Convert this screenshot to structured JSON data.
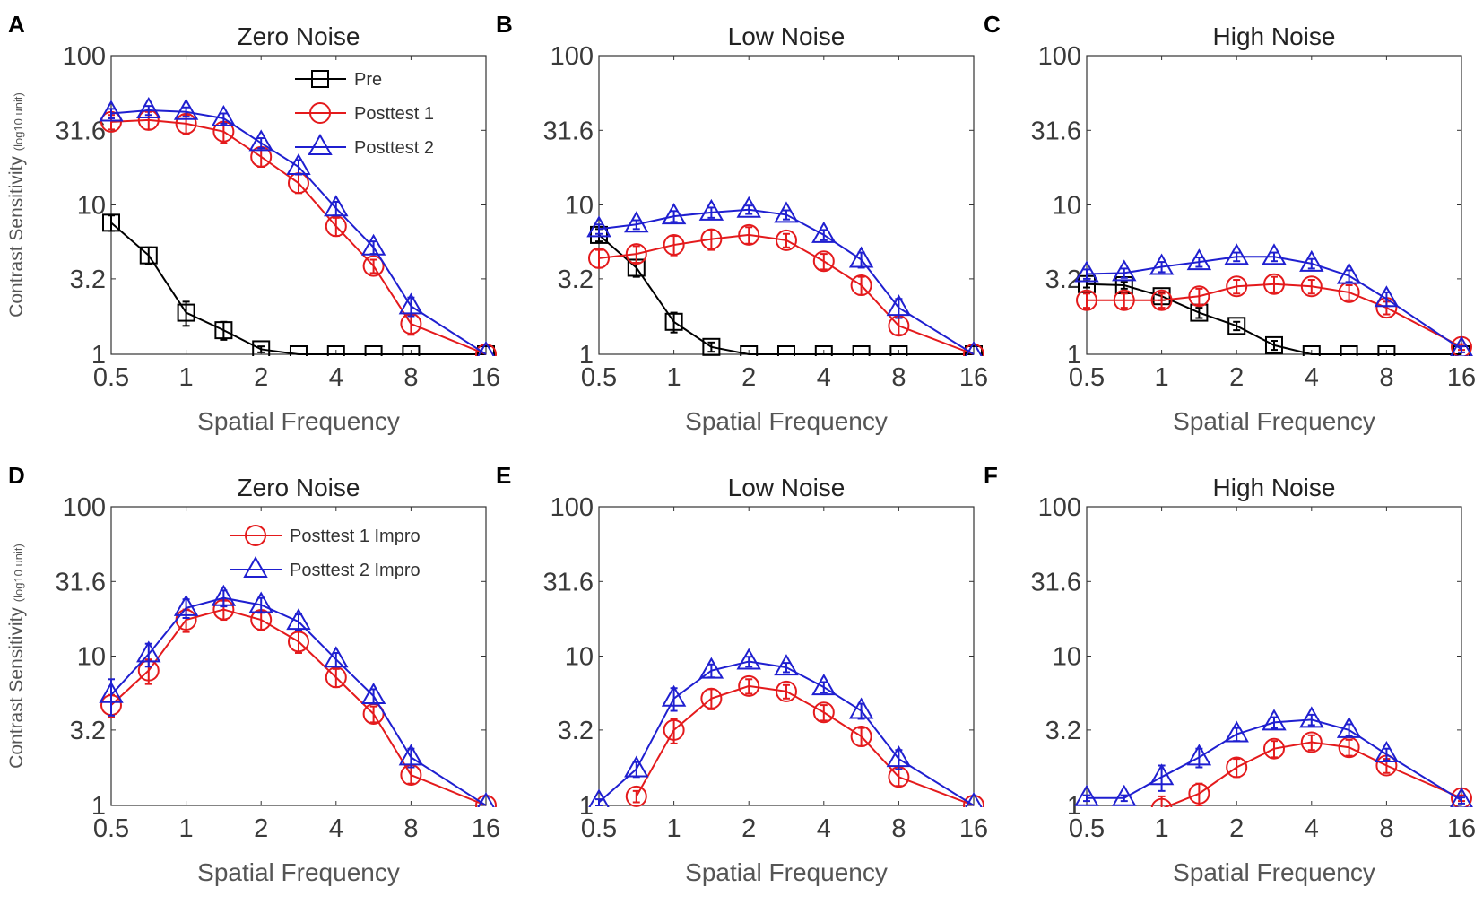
{
  "figure_title": "",
  "chart_data": [
    {
      "panel": "A",
      "type": "line",
      "title": "Zero Noise",
      "xlabel": "Spatial Frequency",
      "ylabel": "Contrast Sensitivity",
      "ylabel_unit": "(log10 unit)",
      "xscale": "log",
      "yscale": "log",
      "xlim": [
        0.5,
        16
      ],
      "ylim": [
        1,
        100
      ],
      "xticks": [
        0.5,
        1,
        2,
        4,
        8,
        16
      ],
      "xtick_labels": [
        "0.5",
        "1",
        "2",
        "4",
        "8",
        "16"
      ],
      "yticks": [
        1,
        3.2,
        10,
        31.6,
        100
      ],
      "ytick_labels": [
        "1",
        "3.2",
        "10",
        "31.6",
        "100"
      ],
      "legend_position": "top-right",
      "series": [
        {
          "name": "Pre",
          "color": "#000000",
          "marker": "square",
          "x": [
            0.5,
            0.707,
            1,
            1.414,
            2,
            2.828,
            4,
            5.657,
            8,
            16
          ],
          "y": [
            7.6,
            4.6,
            1.9,
            1.45,
            1.08,
            1.0,
            1.0,
            1.0,
            1.0,
            1.0
          ],
          "err": [
            0.9,
            0.6,
            0.35,
            0.2,
            0.05,
            0,
            0,
            0,
            0,
            0
          ]
        },
        {
          "name": "Posttest 1",
          "color": "#e41a1c",
          "marker": "circle",
          "x": [
            0.5,
            0.707,
            1,
            1.414,
            2,
            2.828,
            4,
            5.657,
            8,
            16
          ],
          "y": [
            36,
            37,
            35,
            31,
            21,
            14,
            7.2,
            3.9,
            1.6,
            1.0
          ],
          "err": [
            4,
            5,
            5,
            5,
            3,
            2,
            1,
            0.4,
            0.25,
            0
          ]
        },
        {
          "name": "Posttest 2",
          "color": "#1f1fd0",
          "marker": "triangle",
          "x": [
            0.5,
            0.707,
            1,
            1.414,
            2,
            2.828,
            4,
            5.657,
            8,
            16
          ],
          "y": [
            41,
            43,
            42,
            38,
            26,
            18,
            9.5,
            5.2,
            2.1,
            1.0
          ],
          "err": [
            3,
            3,
            3,
            3,
            2,
            2,
            1,
            0.5,
            0.3,
            0
          ]
        }
      ]
    },
    {
      "panel": "B",
      "type": "line",
      "title": "Low Noise",
      "xlabel": "Spatial Frequency",
      "ylabel": "",
      "ylabel_unit": "",
      "xscale": "log",
      "yscale": "log",
      "xlim": [
        0.5,
        16
      ],
      "ylim": [
        1,
        100
      ],
      "xticks": [
        0.5,
        1,
        2,
        4,
        8,
        16
      ],
      "xtick_labels": [
        "0.5",
        "1",
        "2",
        "4",
        "8",
        "16"
      ],
      "yticks": [
        1,
        3.2,
        10,
        31.6,
        100
      ],
      "ytick_labels": [
        "1",
        "3.2",
        "10",
        "31.6",
        "100"
      ],
      "series": [
        {
          "name": "Pre",
          "color": "#000000",
          "marker": "square",
          "x": [
            0.5,
            0.707,
            1,
            1.414,
            2,
            2.828,
            4,
            5.657,
            8,
            16
          ],
          "y": [
            6.3,
            3.8,
            1.65,
            1.12,
            1.0,
            1.0,
            1.0,
            1.0,
            1.0,
            1.0
          ],
          "err": [
            0.6,
            0.5,
            0.25,
            0.08,
            0,
            0,
            0,
            0,
            0,
            0
          ]
        },
        {
          "name": "Posttest 1",
          "color": "#e41a1c",
          "marker": "circle",
          "x": [
            0.5,
            0.707,
            1,
            1.414,
            2,
            2.828,
            4,
            5.657,
            8,
            16
          ],
          "y": [
            4.4,
            4.7,
            5.4,
            5.9,
            6.3,
            5.8,
            4.2,
            2.9,
            1.55,
            1.0
          ],
          "err": [
            0.6,
            0.6,
            0.8,
            0.9,
            0.8,
            0.6,
            0.5,
            0.4,
            0.2,
            0
          ]
        },
        {
          "name": "Posttest 2",
          "color": "#1f1fd0",
          "marker": "triangle",
          "x": [
            0.5,
            0.707,
            1,
            1.414,
            2,
            2.828,
            4,
            5.657,
            8,
            16
          ],
          "y": [
            6.9,
            7.4,
            8.4,
            8.9,
            9.3,
            8.6,
            6.3,
            4.3,
            2.05,
            1.0
          ],
          "err": [
            0.5,
            0.5,
            0.7,
            0.7,
            0.6,
            0.6,
            0.5,
            0.5,
            0.3,
            0
          ]
        }
      ]
    },
    {
      "panel": "C",
      "type": "line",
      "title": "High Noise",
      "xlabel": "Spatial Frequency",
      "ylabel": "",
      "ylabel_unit": "",
      "xscale": "log",
      "yscale": "log",
      "xlim": [
        0.5,
        16
      ],
      "ylim": [
        1,
        100
      ],
      "xticks": [
        0.5,
        1,
        2,
        4,
        8,
        16
      ],
      "xtick_labels": [
        "0.5",
        "1",
        "2",
        "4",
        "8",
        "16"
      ],
      "yticks": [
        1,
        3.2,
        10,
        31.6,
        100
      ],
      "ytick_labels": [
        "1",
        "3.2",
        "10",
        "31.6",
        "100"
      ],
      "series": [
        {
          "name": "Pre",
          "color": "#000000",
          "marker": "square",
          "x": [
            0.5,
            0.707,
            1,
            1.414,
            2,
            2.828,
            4,
            5.657,
            8,
            16
          ],
          "y": [
            2.95,
            2.9,
            2.45,
            1.9,
            1.55,
            1.15,
            1.0,
            1.0,
            1.0,
            1.0
          ],
          "err": [
            0.15,
            0.15,
            0.15,
            0.15,
            0.1,
            0.08,
            0,
            0,
            0,
            0
          ]
        },
        {
          "name": "Posttest 1",
          "color": "#e41a1c",
          "marker": "circle",
          "x": [
            0.5,
            0.707,
            1,
            1.414,
            2,
            2.828,
            4,
            5.657,
            8,
            16
          ],
          "y": [
            2.3,
            2.3,
            2.3,
            2.45,
            2.85,
            2.95,
            2.85,
            2.6,
            2.05,
            1.12
          ],
          "err": [
            0.25,
            0.25,
            0.25,
            0.3,
            0.3,
            0.35,
            0.3,
            0.3,
            0.2,
            0.05
          ]
        },
        {
          "name": "Posttest 2",
          "color": "#1f1fd0",
          "marker": "triangle",
          "x": [
            0.5,
            0.707,
            1,
            1.414,
            2,
            2.828,
            4,
            5.657,
            8,
            16
          ],
          "y": [
            3.45,
            3.5,
            3.85,
            4.15,
            4.5,
            4.5,
            4.05,
            3.35,
            2.35,
            1.08
          ],
          "err": [
            0.25,
            0.25,
            0.3,
            0.3,
            0.3,
            0.3,
            0.3,
            0.3,
            0.25,
            0.05
          ]
        }
      ]
    },
    {
      "panel": "D",
      "type": "line",
      "title": "Zero Noise",
      "xlabel": "Spatial Frequency",
      "ylabel": "Contrast Sensitivity",
      "ylabel_unit": "(log10 unit)",
      "xscale": "log",
      "yscale": "log",
      "xlim": [
        0.5,
        16
      ],
      "ylim": [
        1,
        100
      ],
      "xticks": [
        0.5,
        1,
        2,
        4,
        8,
        16
      ],
      "xtick_labels": [
        "0.5",
        "1",
        "2",
        "4",
        "8",
        "16"
      ],
      "yticks": [
        1,
        3.2,
        10,
        31.6,
        100
      ],
      "ytick_labels": [
        "1",
        "3.2",
        "10",
        "31.6",
        "100"
      ],
      "legend_position": "top-right",
      "series": [
        {
          "name": "Posttest 1 Impro",
          "color": "#e41a1c",
          "marker": "circle",
          "x": [
            0.5,
            0.707,
            1,
            1.414,
            2,
            2.828,
            4,
            5.657,
            8,
            16
          ],
          "y": [
            4.7,
            8.0,
            17.5,
            20.5,
            17.5,
            12.5,
            7.2,
            4.1,
            1.6,
            1.0
          ],
          "err": [
            0.8,
            1.5,
            3,
            3,
            2.5,
            2,
            1,
            0.5,
            0.2,
            0
          ]
        },
        {
          "name": "Posttest 2 Impro",
          "color": "#1f1fd0",
          "marker": "triangle",
          "x": [
            0.5,
            0.707,
            1,
            1.414,
            2,
            2.828,
            4,
            5.657,
            8,
            16
          ],
          "y": [
            5.5,
            10.3,
            21.0,
            24.5,
            22.0,
            17.0,
            9.5,
            5.4,
            2.1,
            1.0
          ],
          "err": [
            1.5,
            1.8,
            3,
            3,
            2.5,
            2,
            1,
            0.6,
            0.3,
            0
          ]
        }
      ]
    },
    {
      "panel": "E",
      "type": "line",
      "title": "Low Noise",
      "xlabel": "Spatial Frequency",
      "ylabel": "",
      "ylabel_unit": "",
      "xscale": "log",
      "yscale": "log",
      "xlim": [
        0.5,
        16
      ],
      "ylim": [
        1,
        100
      ],
      "xticks": [
        0.5,
        1,
        2,
        4,
        8,
        16
      ],
      "xtick_labels": [
        "0.5",
        "1",
        "2",
        "4",
        "8",
        "16"
      ],
      "yticks": [
        1,
        3.2,
        10,
        31.6,
        100
      ],
      "ytick_labels": [
        "1",
        "3.2",
        "10",
        "31.6",
        "100"
      ],
      "series": [
        {
          "name": "Posttest 1 Impro",
          "color": "#e41a1c",
          "marker": "circle",
          "x": [
            0.707,
            1,
            1.414,
            2,
            2.828,
            4,
            5.657,
            8,
            16
          ],
          "y": [
            1.15,
            3.2,
            5.2,
            6.3,
            5.8,
            4.2,
            2.9,
            1.55,
            1.0
          ],
          "err": [
            0.1,
            0.6,
            0.8,
            0.7,
            0.6,
            0.5,
            0.4,
            0.2,
            0
          ]
        },
        {
          "name": "Posttest 2 Impro",
          "color": "#1f1fd0",
          "marker": "triangle",
          "x": [
            0.5,
            0.707,
            1,
            1.414,
            2,
            2.828,
            4,
            5.657,
            8,
            16
          ],
          "y": [
            1.05,
            1.75,
            5.2,
            8.0,
            9.2,
            8.4,
            6.2,
            4.3,
            2.05,
            1.0
          ],
          "err": [
            0.05,
            0.2,
            0.9,
            0.8,
            0.7,
            0.6,
            0.5,
            0.5,
            0.3,
            0
          ]
        }
      ]
    },
    {
      "panel": "F",
      "type": "line",
      "title": "High Noise",
      "xlabel": "Spatial Frequency",
      "ylabel": "",
      "ylabel_unit": "",
      "xscale": "log",
      "yscale": "log",
      "xlim": [
        0.5,
        16
      ],
      "ylim": [
        1,
        100
      ],
      "xticks": [
        0.5,
        1,
        2,
        4,
        8,
        16
      ],
      "xtick_labels": [
        "0.5",
        "1",
        "2",
        "4",
        "8",
        "16"
      ],
      "yticks": [
        1,
        3.2,
        10,
        31.6,
        100
      ],
      "ytick_labels": [
        "1",
        "3.2",
        "10",
        "31.6",
        "100"
      ],
      "series": [
        {
          "name": "Posttest 1 Impro",
          "color": "#e41a1c",
          "marker": "circle",
          "x": [
            1,
            1.414,
            2,
            2.828,
            4,
            5.657,
            8,
            16
          ],
          "y": [
            0.95,
            1.2,
            1.8,
            2.4,
            2.65,
            2.45,
            1.85,
            1.12
          ],
          "err": [
            0.2,
            0.2,
            0.25,
            0.3,
            0.3,
            0.3,
            0.2,
            0.05
          ]
        },
        {
          "name": "Posttest 2 Impro",
          "color": "#1f1fd0",
          "marker": "triangle",
          "x": [
            0.5,
            0.707,
            1,
            1.414,
            2,
            2.828,
            4,
            5.657,
            8,
            16
          ],
          "y": [
            1.12,
            1.12,
            1.55,
            2.1,
            3.0,
            3.6,
            3.75,
            3.2,
            2.2,
            1.08
          ],
          "err": [
            0.05,
            0.05,
            0.3,
            0.3,
            0.3,
            0.3,
            0.3,
            0.3,
            0.2,
            0.05
          ]
        }
      ]
    }
  ]
}
